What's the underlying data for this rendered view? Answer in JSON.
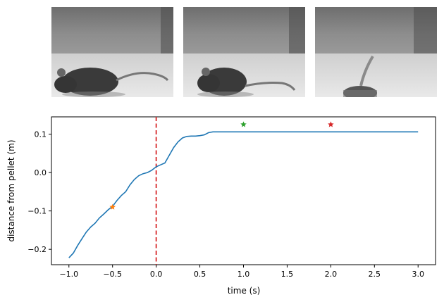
{
  "frames": [
    {
      "name": "mouse-frame-1",
      "content": "mouse approaching"
    },
    {
      "name": "mouse-frame-2",
      "content": "mouse approaching"
    },
    {
      "name": "mouse-frame-3",
      "content": "mouse leaving"
    }
  ],
  "chart_data": {
    "type": "line",
    "title": "",
    "xlabel": "time (s)",
    "ylabel": "distance from pellet (m)",
    "xlim": [
      -1.2,
      3.2
    ],
    "ylim": [
      -0.24,
      0.145
    ],
    "xticks": [
      -1.0,
      -0.5,
      0.0,
      0.5,
      1.0,
      1.5,
      2.0,
      2.5,
      3.0
    ],
    "xtick_labels": [
      "−1.0",
      "−0.5",
      "0.0",
      "0.5",
      "1.0",
      "1.5",
      "2.0",
      "2.5",
      "3.0"
    ],
    "yticks": [
      -0.2,
      -0.1,
      0.0,
      0.1
    ],
    "ytick_labels": [
      "−0.2",
      "−0.1",
      "0.0",
      "0.1"
    ],
    "grid": false,
    "series": [
      {
        "color": "#1f77b4",
        "x": [
          -1.0,
          -0.95,
          -0.9,
          -0.85,
          -0.8,
          -0.75,
          -0.7,
          -0.65,
          -0.6,
          -0.55,
          -0.5,
          -0.45,
          -0.4,
          -0.35,
          -0.3,
          -0.25,
          -0.2,
          -0.15,
          -0.1,
          -0.05,
          0.0,
          0.05,
          0.1,
          0.15,
          0.2,
          0.25,
          0.3,
          0.35,
          0.4,
          0.45,
          0.5,
          0.55,
          0.6,
          0.65,
          0.7,
          0.75,
          0.8,
          0.85,
          0.9,
          1.0,
          1.5,
          2.0,
          2.5,
          3.0
        ],
        "y": [
          -0.222,
          -0.21,
          -0.19,
          -0.172,
          -0.155,
          -0.142,
          -0.132,
          -0.118,
          -0.108,
          -0.097,
          -0.088,
          -0.073,
          -0.06,
          -0.05,
          -0.032,
          -0.018,
          -0.008,
          -0.003,
          0.0,
          0.006,
          0.015,
          0.02,
          0.025,
          0.045,
          0.065,
          0.08,
          0.09,
          0.094,
          0.095,
          0.095,
          0.096,
          0.098,
          0.104,
          0.106,
          0.106,
          0.106,
          0.106,
          0.106,
          0.106,
          0.106,
          0.106,
          0.106,
          0.106,
          0.106
        ]
      }
    ],
    "vline": {
      "x": 0.0,
      "color": "#d62728",
      "style": "dashed"
    },
    "markers": [
      {
        "x": -0.5,
        "y": -0.09,
        "color": "#ff7f0e",
        "symbol": "star"
      },
      {
        "x": 1.0,
        "y": 0.125,
        "color": "#2ca02c",
        "symbol": "star"
      },
      {
        "x": 2.0,
        "y": 0.125,
        "color": "#d62728",
        "symbol": "star"
      }
    ]
  }
}
